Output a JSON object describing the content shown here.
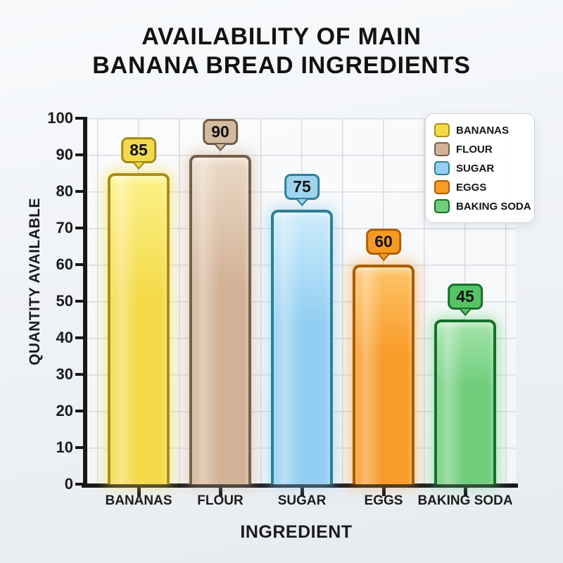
{
  "title": {
    "line1": "AVAILABILITY OF MAIN",
    "line2": "BANANA BREAD INGREDIENTS"
  },
  "chart_data": {
    "type": "bar",
    "title": "Availability of Main Banana Bread Ingredients",
    "xlabel": "INGREDIENT",
    "ylabel": "QUANTITY AVAILABLE",
    "categories": [
      "BANANAS",
      "FLOUR",
      "SUGAR",
      "EGGS",
      "BAKING SODA"
    ],
    "values": [
      85,
      90,
      75,
      60,
      45
    ],
    "value_labels": [
      "85",
      "90",
      "75",
      "60",
      "45"
    ],
    "ylim": [
      0,
      100
    ],
    "ytick_step": 10,
    "ytick_labels": [
      "0",
      "10",
      "20",
      "30",
      "40",
      "50",
      "60",
      "70",
      "80",
      "90",
      "100"
    ],
    "grid": true,
    "legend_position": "top-right",
    "colors": [
      {
        "name": "bananas",
        "fill": "#f4da49",
        "light": "#fcf188",
        "border": "#ab8f15",
        "glow": "rgba(244,218,73,0.55)",
        "callout_fill": "#f2d94e",
        "callout_border": "#a58a14"
      },
      {
        "name": "flour",
        "fill": "#d2b296",
        "light": "#ead9c6",
        "border": "#73604b",
        "glow": "rgba(210,178,150,0.55)",
        "callout_fill": "#d3bb9f",
        "callout_border": "#6f5b46"
      },
      {
        "name": "sugar",
        "fill": "#93cff2",
        "light": "#cdecfb",
        "border": "#2e7f94",
        "glow": "rgba(147,207,242,0.6)",
        "callout_fill": "#a0d4ee",
        "callout_border": "#2d7f9a"
      },
      {
        "name": "eggs",
        "fill": "#f89b28",
        "light": "#fdc469",
        "border": "#a85c00",
        "glow": "rgba(248,155,40,0.5)",
        "callout_fill": "#f89a20",
        "callout_border": "#b05e00"
      },
      {
        "name": "baking-soda",
        "fill": "#6fcd7c",
        "light": "#a2e3a9",
        "border": "#156f2a",
        "glow": "rgba(111,205,124,0.55)",
        "callout_fill": "#57c366",
        "callout_border": "#166f2b"
      }
    ]
  },
  "legend": {
    "items": [
      "BANANAS",
      "FLOUR",
      "SUGAR",
      "EGGS",
      "BAKING SODA"
    ]
  }
}
